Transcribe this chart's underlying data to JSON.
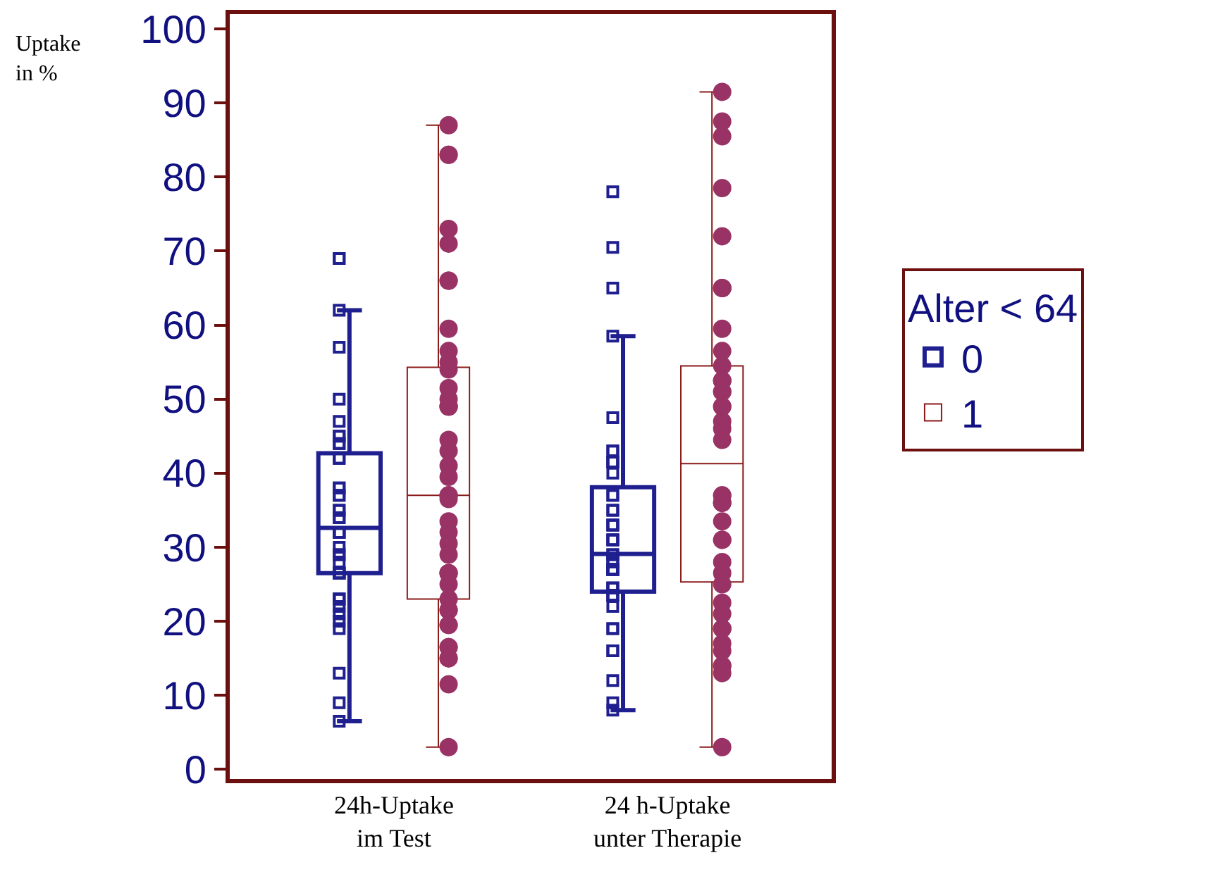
{
  "chart_data": {
    "type": "box",
    "ylabel": "Uptake\nin %",
    "legend_title": "Alter < 64",
    "categories": [
      "24h-Uptake\nim Test",
      "24 h-Uptake\nunter Therapie"
    ],
    "ylim": [
      -1.3,
      102
    ],
    "yticks": [
      0,
      10,
      20,
      30,
      40,
      50,
      60,
      70,
      80,
      90,
      100
    ],
    "grid": false,
    "legend": "right",
    "series": [
      {
        "name": "0",
        "color": "#1f1f8f",
        "line_style": "solid",
        "boxes": [
          {
            "low": 6.5,
            "q1": 26.5,
            "median": 32.6,
            "q3": 42.7,
            "high": 62
          },
          {
            "low": 8,
            "q1": 24,
            "median": 29.1,
            "q3": 38.1,
            "high": 58.5
          }
        ]
      },
      {
        "name": "1",
        "color": "#8b1a1a",
        "line_style": "dotted",
        "boxes": [
          {
            "low": 3,
            "q1": 23,
            "median": 37,
            "q3": 54.3,
            "high": 87
          },
          {
            "low": 3,
            "q1": 25.3,
            "median": 41.3,
            "q3": 54.5,
            "high": 91.5
          }
        ]
      },
      {
        "type": "scatter",
        "color": "#1f1f8f",
        "marker": "square",
        "x": [
          "24h-Uptake\nim Test",
          "24h-Uptake\nim Test",
          "24h-Uptake\nim Test",
          "24h-Uptake\nim Test",
          "24h-Uptake\nim Test",
          "24h-Uptake\nim Test",
          "24h-Uptake\nim Test",
          "24h-Uptake\nim Test",
          "24h-Uptake\nim Test",
          "24h-Uptake\nim Test",
          "24h-Uptake\nim Test",
          "24h-Uptake\nim Test",
          "24h-Uptake\nim Test",
          "24h-Uptake\nim Test",
          "24h-Uptake\nim Test",
          "24h-Uptake\nim Test",
          "24h-Uptake\nim Test",
          "24h-Uptake\nim Test",
          "24h-Uptake\nim Test",
          "24h-Uptake\nim Test",
          "24h-Uptake\nim Test",
          "24h-Uptake\nim Test",
          "24h-Uptake\nim Test",
          "24h-Uptake\nim Test",
          "24h-Uptake\nim Test",
          "24h-Uptake\nim Test",
          "24h-Uptake\nim Test",
          "24h-Uptake\nim Test",
          "24h-Uptake\nim Test",
          "24h-Uptake\nim Test",
          "24h-Uptake\nim Test",
          "24h-Uptake\nim Test",
          "24h-Uptake\nim Test",
          "24h-Uptake\nim Test",
          "24h-Uptake\nim Test",
          "24h-Uptake\nim Test",
          "24h-Uptake\nim Test",
          "24h-Uptake\nim Test",
          "24h-Uptake\nim Test",
          "24h-Uptake\nim Test",
          "24h-Uptake\nim Test",
          "24h-Uptake\nim Test",
          "24h-Uptake\nim Test",
          "24 h-Uptake\nunter Therapie",
          "24 h-Uptake\nunter Therapie",
          "24 h-Uptake\nunter Therapie",
          "24 h-Uptake\nunter Therapie",
          "24 h-Uptake\nunter Therapie",
          "24 h-Uptake\nunter Therapie",
          "24 h-Uptake\nunter Therapie",
          "24 h-Uptake\nunter Therapie",
          "24 h-Uptake\nunter Therapie",
          "24 h-Uptake\nunter Therapie",
          "24 h-Uptake\nunter Therapie",
          "24 h-Uptake\nunter Therapie",
          "24 h-Uptake\nunter Therapie",
          "24 h-Uptake\nunter Therapie",
          "24 h-Uptake\nunter Therapie",
          "24 h-Uptake\nunter Therapie",
          "24 h-Uptake\nunter Therapie",
          "24 h-Uptake\nunter Therapie",
          "24 h-Uptake\nunter Therapie",
          "24 h-Uptake\nunter Therapie",
          "24 h-Uptake\nunter Therapie",
          "24 h-Uptake\nunter Therapie",
          "24 h-Uptake\nunter Therapie",
          "24 h-Uptake\nunter Therapie",
          "24 h-Uptake\nunter Therapie",
          "24 h-Uptake\nunter Therapie",
          "24 h-Uptake\nunter Therapie",
          "24 h-Uptake\nunter Therapie",
          "24 h-Uptake\nunter Therapie",
          "24 h-Uptake\nunter Therapie",
          "24 h-Uptake\nunter Therapie",
          "24 h-Uptake\nunter Therapie",
          "24 h-Uptake\nunter Therapie",
          "24 h-Uptake\nunter Therapie",
          "24 h-Uptake\nunter Therapie",
          "24 h-Uptake\nunter Therapie",
          "24 h-Uptake\nunter Therapie",
          "24 h-Uptake\nunter Therapie",
          "24 h-Uptake\nunter Therapie",
          "24 h-Uptake\nunter Therapie",
          "24 h-Uptake\nunter Therapie",
          "24 h-Uptake\nunter Therapie",
          "24 h-Uptake\nunter Therapie",
          "24 h-Uptake\nunter Therapie"
        ],
        "values": [
          69,
          69,
          62,
          57,
          50,
          47,
          45,
          45,
          44,
          44,
          42,
          42,
          38,
          38,
          37,
          37,
          35,
          35,
          34,
          34,
          32,
          32,
          32,
          32,
          30,
          29,
          29,
          28,
          26.5,
          26.5,
          26.5,
          26.5,
          26.5,
          23,
          23,
          23,
          22,
          21,
          20,
          19,
          13,
          9,
          6.5,
          78,
          70.5,
          65,
          58.5,
          47.5,
          43,
          43,
          41.5,
          41.5,
          41.5,
          40,
          37,
          37,
          35,
          35,
          33,
          33,
          33,
          31,
          31,
          31,
          29,
          29,
          28,
          28,
          27,
          27,
          27,
          27,
          27,
          24.5,
          24.5,
          24.5,
          23.5,
          23.5,
          23.5,
          22,
          19,
          19,
          16,
          16,
          12,
          9,
          8
        ]
      },
      {
        "type": "scatter",
        "color": "#993366",
        "marker": "circle",
        "x": [
          "24h-Uptake\nim Test",
          "24h-Uptake\nim Test",
          "24h-Uptake\nim Test",
          "24h-Uptake\nim Test",
          "24h-Uptake\nim Test",
          "24h-Uptake\nim Test",
          "24h-Uptake\nim Test",
          "24h-Uptake\nim Test",
          "24h-Uptake\nim Test",
          "24h-Uptake\nim Test",
          "24h-Uptake\nim Test",
          "24h-Uptake\nim Test",
          "24h-Uptake\nim Test",
          "24h-Uptake\nim Test",
          "24h-Uptake\nim Test",
          "24h-Uptake\nim Test",
          "24h-Uptake\nim Test",
          "24h-Uptake\nim Test",
          "24h-Uptake\nim Test",
          "24h-Uptake\nim Test",
          "24h-Uptake\nim Test",
          "24h-Uptake\nim Test",
          "24h-Uptake\nim Test",
          "24h-Uptake\nim Test",
          "24h-Uptake\nim Test",
          "24h-Uptake\nim Test",
          "24h-Uptake\nim Test",
          "24h-Uptake\nim Test",
          "24h-Uptake\nim Test",
          "24h-Uptake\nim Test",
          "24h-Uptake\nim Test",
          "24h-Uptake\nim Test",
          "24h-Uptake\nim Test",
          "24h-Uptake\nim Test",
          "24h-Uptake\nim Test",
          "24h-Uptake\nim Test",
          "24h-Uptake\nim Test",
          "24h-Uptake\nim Test",
          "24h-Uptake\nim Test",
          "24h-Uptake\nim Test",
          "24h-Uptake\nim Test",
          "24h-Uptake\nim Test",
          "24h-Uptake\nim Test",
          "24 h-Uptake\nunter Therapie",
          "24 h-Uptake\nunter Therapie",
          "24 h-Uptake\nunter Therapie",
          "24 h-Uptake\nunter Therapie",
          "24 h-Uptake\nunter Therapie",
          "24 h-Uptake\nunter Therapie",
          "24 h-Uptake\nunter Therapie",
          "24 h-Uptake\nunter Therapie",
          "24 h-Uptake\nunter Therapie",
          "24 h-Uptake\nunter Therapie",
          "24 h-Uptake\nunter Therapie",
          "24 h-Uptake\nunter Therapie",
          "24 h-Uptake\nunter Therapie",
          "24 h-Uptake\nunter Therapie",
          "24 h-Uptake\nunter Therapie",
          "24 h-Uptake\nunter Therapie",
          "24 h-Uptake\nunter Therapie",
          "24 h-Uptake\nunter Therapie",
          "24 h-Uptake\nunter Therapie",
          "24 h-Uptake\nunter Therapie",
          "24 h-Uptake\nunter Therapie",
          "24 h-Uptake\nunter Therapie",
          "24 h-Uptake\nunter Therapie",
          "24 h-Uptake\nunter Therapie",
          "24 h-Uptake\nunter Therapie",
          "24 h-Uptake\nunter Therapie",
          "24 h-Uptake\nunter Therapie",
          "24 h-Uptake\nunter Therapie",
          "24 h-Uptake\nunter Therapie",
          "24 h-Uptake\nunter Therapie",
          "24 h-Uptake\nunter Therapie",
          "24 h-Uptake\nunter Therapie",
          "24 h-Uptake\nunter Therapie",
          "24 h-Uptake\nunter Therapie",
          "24 h-Uptake\nunter Therapie",
          "24 h-Uptake\nunter Therapie",
          "24 h-Uptake\nunter Therapie",
          "24 h-Uptake\nunter Therapie",
          "24 h-Uptake\nunter Therapie",
          "24 h-Uptake\nunter Therapie",
          "24 h-Uptake\nunter Therapie",
          "24 h-Uptake\nunter Therapie",
          "24 h-Uptake\nunter Therapie"
        ],
        "values": [
          87,
          83,
          83,
          73,
          71,
          66,
          66,
          59.5,
          56.5,
          55,
          54,
          51.5,
          50,
          49,
          49,
          49,
          44.5,
          43,
          41,
          39.5,
          37,
          37,
          37,
          36.5,
          33.5,
          32,
          30.5,
          29,
          26.5,
          26.5,
          26.5,
          25,
          23,
          21.5,
          21.5,
          19.5,
          19.5,
          16.5,
          16.5,
          15,
          15,
          11.5,
          3,
          91.5,
          87.5,
          85.5,
          78.5,
          72,
          65,
          65,
          65,
          59.5,
          56.5,
          54.5,
          52.5,
          52.5,
          52.5,
          51,
          51,
          49,
          49,
          47,
          46,
          44.5,
          37,
          37,
          36,
          36,
          36,
          33.5,
          31,
          31,
          28,
          26.5,
          25,
          22.5,
          21,
          19,
          19,
          19,
          17,
          16,
          14,
          14,
          13,
          3
        ]
      }
    ]
  }
}
